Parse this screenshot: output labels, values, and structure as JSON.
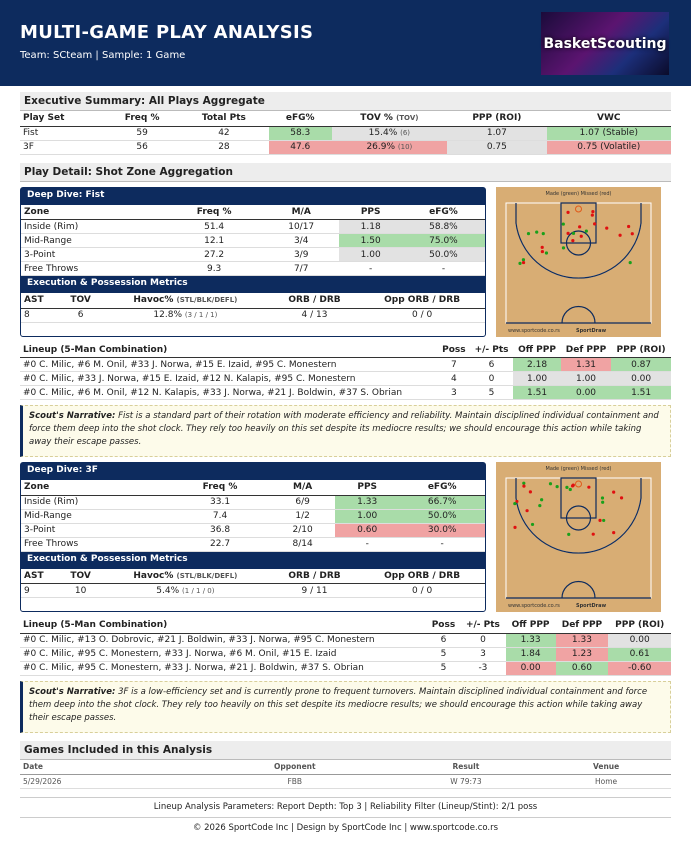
{
  "header": {
    "title": "MULTI-GAME PLAY ANALYSIS",
    "subtitle": "Team: SCteam | Sample: 1 Game",
    "logo": "BasketScouting"
  },
  "summary": {
    "title": "Executive Summary: All Plays Aggregate",
    "columns": [
      "Play Set",
      "Freq %",
      "Total Pts",
      "eFG%",
      {
        "text": "TOV %",
        "sub": "(TOV)"
      },
      "PPP (ROI)",
      "VWC"
    ],
    "rows": [
      [
        "Fist",
        "59",
        "42",
        {
          "text": "58.3",
          "tone": "green"
        },
        {
          "text": "15.4%",
          "sub": "(6)",
          "tone": "gray"
        },
        {
          "text": "1.07",
          "tone": "gray"
        },
        {
          "text": "1.07 (Stable)",
          "tone": "green"
        }
      ],
      [
        "3F",
        "56",
        "28",
        {
          "text": "47.6",
          "tone": "red"
        },
        {
          "text": "26.9%",
          "sub": "(10)",
          "tone": "red"
        },
        {
          "text": "0.75",
          "tone": "gray"
        },
        {
          "text": "0.75 (Volatile)",
          "tone": "red"
        }
      ]
    ]
  },
  "detail_title": "Play Detail: Shot Zone Aggregation",
  "court": {
    "legend": "Made (green)  Missed (red)",
    "site": "www.sportcode.co.rs",
    "brand": "SportDraw"
  },
  "dives": [
    {
      "title": "Deep Dive: Fist",
      "zones": {
        "columns": [
          "Zone",
          "Freq %",
          "M/A",
          "PPS",
          "eFG%"
        ],
        "rows": [
          [
            "Inside (Rim)",
            "51.4",
            "10/17",
            {
              "text": "1.18",
              "tone": "gray"
            },
            {
              "text": "58.8%",
              "tone": "gray"
            }
          ],
          [
            "Mid-Range",
            "12.1",
            "3/4",
            {
              "text": "1.50",
              "tone": "green"
            },
            {
              "text": "75.0%",
              "tone": "green"
            }
          ],
          [
            "3-Point",
            "27.2",
            "3/9",
            {
              "text": "1.00",
              "tone": "gray"
            },
            {
              "text": "50.0%",
              "tone": "gray"
            }
          ],
          [
            "Free Throws",
            "9.3",
            "7/7",
            "-",
            "-"
          ]
        ]
      },
      "metrics_title": "Execution & Possession Metrics",
      "metrics": {
        "columns": [
          "AST",
          "TOV",
          {
            "text": "Havoc%",
            "sub": "(STL/BLK/DEFL)"
          },
          "ORB / DRB",
          "Opp ORB / DRB"
        ],
        "rows": [
          [
            "8",
            "6",
            {
              "text": "12.8%",
              "sub": "(3 / 1 / 1)"
            },
            "4 / 13",
            "0 / 0"
          ]
        ]
      },
      "lineups": {
        "columns": [
          "Lineup (5-Man Combination)",
          "Poss",
          "+/- Pts",
          "Off PPP",
          "Def PPP",
          "PPP (ROI)"
        ],
        "rows": [
          [
            "#0 C. Milic, #6 M. Onil, #33 J. Norwa, #15 E. Izaid, #95 C. Monestern",
            "7",
            "6",
            {
              "text": "2.18",
              "tone": "green"
            },
            {
              "text": "1.31",
              "tone": "red"
            },
            {
              "text": "0.87",
              "tone": "green"
            }
          ],
          [
            "#0 C. Milic, #33 J. Norwa, #15 E. Izaid, #12 N. Kalapis, #95 C. Monestern",
            "4",
            "0",
            {
              "text": "1.00",
              "tone": "gray"
            },
            {
              "text": "1.00",
              "tone": "gray"
            },
            {
              "text": "0.00",
              "tone": "gray"
            }
          ],
          [
            "#0 C. Milic, #6 M. Onil, #12 N. Kalapis, #33 J. Norwa, #21 J. Boldwin, #37 S. Obrian",
            "3",
            "5",
            {
              "text": "1.51",
              "tone": "green"
            },
            {
              "text": "0.00",
              "tone": "green"
            },
            {
              "text": "1.51",
              "tone": "green"
            }
          ]
        ]
      },
      "narrative_label": "Scout's Narrative:",
      "narrative": "Fist is a standard part of their rotation with moderate efficiency and reliability. Maintain disciplined individual containment and force them deep into the shot clock. They rely too heavily on this set despite its mediocre results; we should encourage this action while taking away their escape passes."
    },
    {
      "title": "Deep Dive: 3F",
      "zones": {
        "columns": [
          "Zone",
          "Freq %",
          "M/A",
          "PPS",
          "eFG%"
        ],
        "rows": [
          [
            "Inside (Rim)",
            "33.1",
            "6/9",
            {
              "text": "1.33",
              "tone": "green"
            },
            {
              "text": "66.7%",
              "tone": "green"
            }
          ],
          [
            "Mid-Range",
            "7.4",
            "1/2",
            {
              "text": "1.00",
              "tone": "green"
            },
            {
              "text": "50.0%",
              "tone": "green"
            }
          ],
          [
            "3-Point",
            "36.8",
            "2/10",
            {
              "text": "0.60",
              "tone": "red"
            },
            {
              "text": "30.0%",
              "tone": "red"
            }
          ],
          [
            "Free Throws",
            "22.7",
            "8/14",
            "-",
            "-"
          ]
        ]
      },
      "metrics_title": "Execution & Possession Metrics",
      "metrics": {
        "columns": [
          "AST",
          "TOV",
          {
            "text": "Havoc%",
            "sub": "(STL/BLK/DEFL)"
          },
          "ORB / DRB",
          "Opp ORB / DRB"
        ],
        "rows": [
          [
            "9",
            "10",
            {
              "text": "5.4%",
              "sub": "(1 / 1 / 0)"
            },
            "9 / 11",
            "0 / 0"
          ]
        ]
      },
      "lineups": {
        "columns": [
          "Lineup (5-Man Combination)",
          "Poss",
          "+/- Pts",
          "Off PPP",
          "Def PPP",
          "PPP (ROI)"
        ],
        "rows": [
          [
            "#0 C. Milic, #13 O. Dobrovic, #21 J. Boldwin, #33 J. Norwa, #95 C. Monestern",
            "6",
            "0",
            {
              "text": "1.33",
              "tone": "green"
            },
            {
              "text": "1.33",
              "tone": "red"
            },
            {
              "text": "0.00",
              "tone": "gray"
            }
          ],
          [
            "#0 C. Milic, #95 C. Monestern, #33 J. Norwa, #6 M. Onil, #15 E. Izaid",
            "5",
            "3",
            {
              "text": "1.84",
              "tone": "green"
            },
            {
              "text": "1.23",
              "tone": "red"
            },
            {
              "text": "0.61",
              "tone": "green"
            }
          ],
          [
            "#0 C. Milic, #95 C. Monestern, #33 J. Norwa, #21 J. Boldwin, #37 S. Obrian",
            "5",
            "-3",
            {
              "text": "0.00",
              "tone": "red"
            },
            {
              "text": "0.60",
              "tone": "green"
            },
            {
              "text": "-0.60",
              "tone": "red"
            }
          ]
        ]
      },
      "narrative_label": "Scout's Narrative:",
      "narrative": "3F is a low-efficiency set and is currently prone to frequent turnovers. Maintain disciplined individual containment and force them deep into the shot clock. They rely too heavily on this set despite its mediocre results; we should encourage this action while taking away their escape passes."
    }
  ],
  "games": {
    "title": "Games Included in this Analysis",
    "columns": [
      "Date",
      "Opponent",
      "Result",
      "Venue"
    ],
    "rows": [
      [
        "5/29/2026",
        "FBB",
        "W 79:73",
        "Home"
      ]
    ]
  },
  "footer": {
    "parameters": "Lineup Analysis Parameters: Report Depth: Top 3 | Reliability Filter (Lineup/Stint): 2/1 poss",
    "copyright": "© 2026 SportCode Inc | Design by SportCode Inc | www.sportcode.co.rs"
  }
}
